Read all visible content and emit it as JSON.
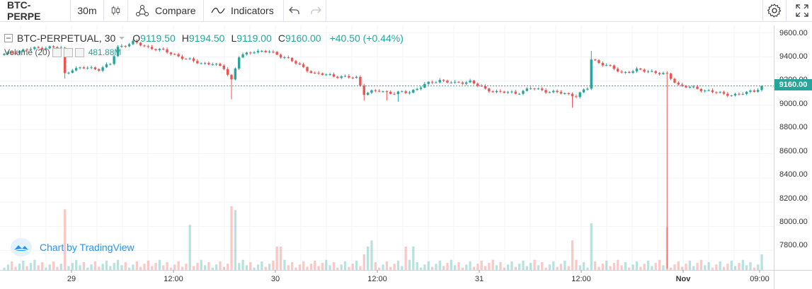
{
  "toolbar": {
    "symbol": "BTC-PERPE",
    "interval": "30m",
    "compare_label": "Compare",
    "indicators_label": "Indicators"
  },
  "legend": {
    "symbol": "BTC-PERPETUAL, 30",
    "o_label": "O",
    "o_value": "9119.50",
    "h_label": "H",
    "h_value": "9194.50",
    "l_label": "L",
    "l_value": "9119.00",
    "c_label": "C",
    "c_value": "9160.00",
    "change": "+40.50 (+0.44%)"
  },
  "volume_legend": {
    "label": "Volume (20)",
    "value": "481.88M"
  },
  "brand": "Chart by TradingView",
  "colors": {
    "up": "#26a69a",
    "down": "#ef5350",
    "price_label_bg": "#26a69a",
    "brand": "#2196f3"
  },
  "x_axis_labels": [
    "29",
    "12:00",
    "30",
    "12:00",
    "31",
    "12:00",
    "Nov",
    "09:00"
  ],
  "y_axis_labels": [
    "9600.00",
    "9400.00",
    "9200.00",
    "9000.00",
    "8800.00",
    "8600.00",
    "8400.00",
    "8200.00",
    "8000.00",
    "7800.00"
  ],
  "last_price_label": "9160.00",
  "chart_data": {
    "type": "candlestick",
    "title": "BTC-PERPETUAL, 30",
    "ylim": [
      7640,
      9660
    ],
    "last_price": 9160,
    "price_anchors": [
      [
        0,
        9420
      ],
      [
        4,
        9450
      ],
      [
        8,
        9470
      ],
      [
        12,
        9480
      ],
      [
        15,
        9470
      ],
      [
        16,
        9260
      ],
      [
        18,
        9300
      ],
      [
        22,
        9310
      ],
      [
        25,
        9300
      ],
      [
        28,
        9340
      ],
      [
        30,
        9480
      ],
      [
        34,
        9520
      ],
      [
        38,
        9480
      ],
      [
        42,
        9450
      ],
      [
        45,
        9420
      ],
      [
        48,
        9380
      ],
      [
        52,
        9350
      ],
      [
        55,
        9340
      ],
      [
        58,
        9310
      ],
      [
        60,
        9210
      ],
      [
        62,
        9400
      ],
      [
        66,
        9450
      ],
      [
        70,
        9440
      ],
      [
        74,
        9400
      ],
      [
        78,
        9330
      ],
      [
        82,
        9260
      ],
      [
        86,
        9250
      ],
      [
        90,
        9230
      ],
      [
        93,
        9230
      ],
      [
        95,
        9100
      ],
      [
        99,
        9120
      ],
      [
        103,
        9100
      ],
      [
        107,
        9110
      ],
      [
        111,
        9170
      ],
      [
        115,
        9210
      ],
      [
        119,
        9180
      ],
      [
        123,
        9200
      ],
      [
        127,
        9130
      ],
      [
        131,
        9110
      ],
      [
        135,
        9100
      ],
      [
        139,
        9140
      ],
      [
        143,
        9120
      ],
      [
        147,
        9100
      ],
      [
        151,
        9080
      ],
      [
        154,
        9140
      ],
      [
        155,
        9380
      ],
      [
        159,
        9330
      ],
      [
        163,
        9270
      ],
      [
        167,
        9290
      ],
      [
        171,
        9280
      ],
      [
        175,
        9250
      ],
      [
        178,
        9170
      ],
      [
        182,
        9140
      ],
      [
        186,
        9120
      ],
      [
        190,
        9090
      ],
      [
        194,
        9090
      ],
      [
        198,
        9120
      ],
      [
        200,
        9160
      ]
    ],
    "wicks": [
      {
        "i": 16,
        "low": 9220
      },
      {
        "i": 60,
        "low": 9050
      },
      {
        "i": 95,
        "low": 9040
      },
      {
        "i": 101,
        "low": 9040
      },
      {
        "i": 104,
        "low": 9030
      },
      {
        "i": 150,
        "low": 8980
      },
      {
        "i": 155,
        "high": 9450
      },
      {
        "i": 175,
        "low": 7650
      }
    ],
    "volume": {
      "spikes": [
        [
          16,
          0.78
        ],
        [
          49,
          0.58
        ],
        [
          60,
          0.82
        ],
        [
          61,
          0.77
        ],
        [
          72,
          0.3
        ],
        [
          73,
          0.3
        ],
        [
          95,
          0.2
        ],
        [
          96,
          0.3
        ],
        [
          97,
          0.38
        ],
        [
          106,
          0.3
        ],
        [
          108,
          0.3
        ],
        [
          150,
          0.38
        ],
        [
          155,
          0.6
        ],
        [
          175,
          0.55
        ],
        [
          200,
          0.2
        ]
      ]
    }
  }
}
